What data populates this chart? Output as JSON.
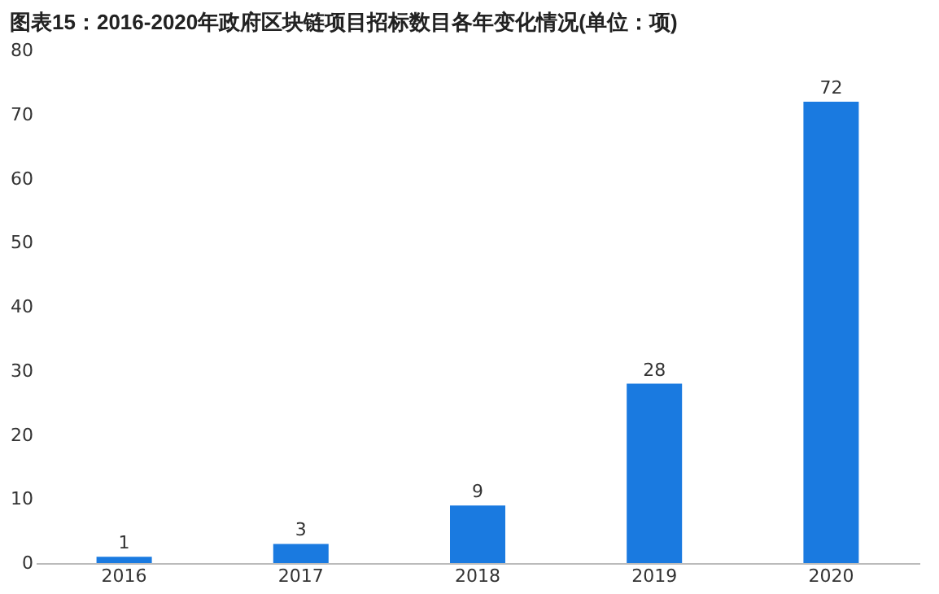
{
  "chart_data": {
    "type": "bar",
    "title": "图表15：2016-2020年政府区块链项目招标数目各年变化情况(单位：项)",
    "categories": [
      "2016",
      "2017",
      "2018",
      "2019",
      "2020"
    ],
    "values": [
      1,
      3,
      9,
      28,
      72
    ],
    "color": "#1a7ae0",
    "ylim": [
      0,
      80
    ],
    "yticks": [
      0,
      10,
      20,
      30,
      40,
      50,
      60,
      70,
      80
    ],
    "data_labels": true
  }
}
